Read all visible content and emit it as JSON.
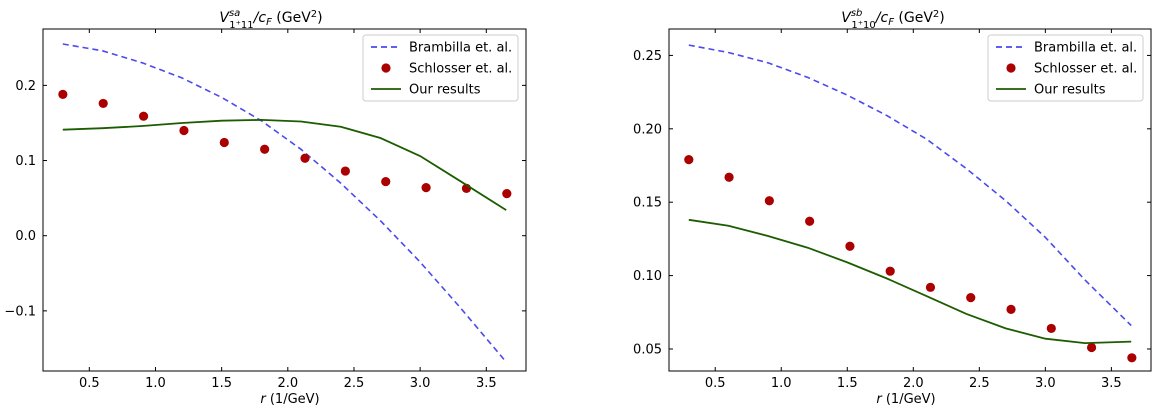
{
  "chart_data": [
    {
      "type": "line",
      "title": "V^{sa}_{1^+11}/c_F (GeV^2)",
      "title_parts": {
        "main": "V",
        "sup": "sa",
        "sub": "1⁺11",
        "rest": "/c",
        "rest_sub": "F",
        "unit": " (GeV",
        "unit_sup": "2",
        "unit_end": ")"
      },
      "xlabel": "r (1/GeV)",
      "xlabel_parts": {
        "var": "r",
        "unit": " (1/GeV)"
      },
      "ylabel": "",
      "xlim": [
        0.15,
        3.8
      ],
      "ylim": [
        -0.18,
        0.275
      ],
      "xticks": [
        0.5,
        1.0,
        1.5,
        2.0,
        2.5,
        3.0,
        3.5
      ],
      "xtick_labels": [
        "0.5",
        "1.0",
        "1.5",
        "2.0",
        "2.5",
        "3.0",
        "3.5"
      ],
      "yticks": [
        -0.1,
        0.0,
        0.1,
        0.2
      ],
      "ytick_labels": [
        "−0.1",
        "0.0",
        "0.1",
        "0.2"
      ],
      "grid": false,
      "legend_position": "top-right",
      "series": [
        {
          "name": "Brambilla et. al.",
          "style": "dashed",
          "color": "#4a4aee",
          "x": [
            0.3,
            0.6,
            0.9,
            1.2,
            1.5,
            1.8,
            2.1,
            2.4,
            2.7,
            3.0,
            3.3,
            3.65
          ],
          "y": [
            0.255,
            0.246,
            0.23,
            0.21,
            0.184,
            0.153,
            0.115,
            0.07,
            0.02,
            -0.035,
            -0.095,
            -0.168
          ]
        },
        {
          "name": "Schlosser et. al.",
          "style": "markers",
          "color": "#aa0000",
          "x": [
            0.3,
            0.605,
            0.91,
            1.215,
            1.52,
            1.825,
            2.13,
            2.435,
            2.74,
            3.045,
            3.35,
            3.655
          ],
          "y": [
            0.188,
            0.176,
            0.159,
            0.14,
            0.124,
            0.115,
            0.103,
            0.086,
            0.072,
            0.064,
            0.063,
            0.056
          ]
        },
        {
          "name": "Our results",
          "style": "solid",
          "color": "#1d5c00",
          "x": [
            0.3,
            0.6,
            0.9,
            1.2,
            1.5,
            1.8,
            2.1,
            2.4,
            2.7,
            3.0,
            3.3,
            3.65
          ],
          "y": [
            0.141,
            0.143,
            0.146,
            0.15,
            0.153,
            0.154,
            0.152,
            0.145,
            0.13,
            0.106,
            0.073,
            0.034
          ]
        }
      ]
    },
    {
      "type": "line",
      "title": "V^{sb}_{1^+10}/c_F (GeV^2)",
      "title_parts": {
        "main": "V",
        "sup": "sb",
        "sub": "1⁺10",
        "rest": "/c",
        "rest_sub": "F",
        "unit": " (GeV",
        "unit_sup": "2",
        "unit_end": ")"
      },
      "xlabel": "r (1/GeV)",
      "xlabel_parts": {
        "var": "r",
        "unit": " (1/GeV)"
      },
      "ylabel": "",
      "xlim": [
        0.15,
        3.8
      ],
      "ylim": [
        0.035,
        0.268
      ],
      "xticks": [
        0.5,
        1.0,
        1.5,
        2.0,
        2.5,
        3.0,
        3.5
      ],
      "xtick_labels": [
        "0.5",
        "1.0",
        "1.5",
        "2.0",
        "2.5",
        "3.0",
        "3.5"
      ],
      "yticks": [
        0.05,
        0.1,
        0.15,
        0.2,
        0.25
      ],
      "ytick_labels": [
        "0.05",
        "0.10",
        "0.15",
        "0.20",
        "0.25"
      ],
      "grid": false,
      "legend_position": "top-right",
      "series": [
        {
          "name": "Brambilla et. al.",
          "style": "dashed",
          "color": "#4a4aee",
          "x": [
            0.3,
            0.6,
            0.9,
            1.2,
            1.5,
            1.8,
            2.1,
            2.4,
            2.7,
            3.0,
            3.3,
            3.65
          ],
          "y": [
            0.257,
            0.252,
            0.245,
            0.235,
            0.223,
            0.209,
            0.193,
            0.173,
            0.151,
            0.126,
            0.097,
            0.066
          ]
        },
        {
          "name": "Schlosser et. al.",
          "style": "markers",
          "color": "#aa0000",
          "x": [
            0.3,
            0.605,
            0.91,
            1.215,
            1.52,
            1.825,
            2.13,
            2.435,
            2.74,
            3.045,
            3.35,
            3.655
          ],
          "y": [
            0.179,
            0.167,
            0.151,
            0.137,
            0.12,
            0.103,
            0.092,
            0.085,
            0.077,
            0.064,
            0.051,
            0.044
          ]
        },
        {
          "name": "Our results",
          "style": "solid",
          "color": "#1d5c00",
          "x": [
            0.3,
            0.6,
            0.9,
            1.2,
            1.5,
            1.8,
            2.1,
            2.4,
            2.7,
            3.0,
            3.3,
            3.65
          ],
          "y": [
            0.138,
            0.134,
            0.127,
            0.119,
            0.109,
            0.098,
            0.086,
            0.074,
            0.064,
            0.057,
            0.054,
            0.055
          ]
        }
      ]
    }
  ]
}
